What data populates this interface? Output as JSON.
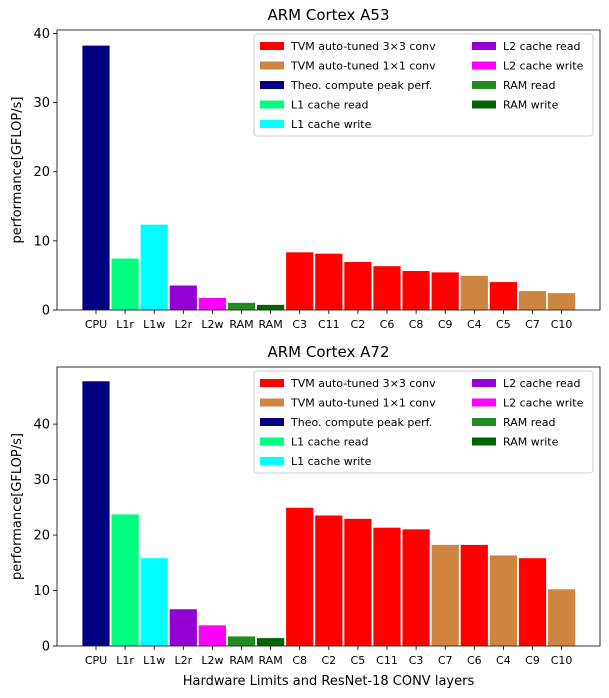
{
  "chart_data": [
    {
      "type": "bar",
      "title": "ARM Cortex A53",
      "xlabel": "",
      "ylabel": "performance[GFLOP/s]",
      "ylim": [
        0,
        40.5
      ],
      "yticks": [
        0,
        10,
        20,
        30,
        40
      ],
      "legend_position": "top-right",
      "categories": [
        "CPU",
        "L1r",
        "L1w",
        "L2r",
        "L2w",
        "RAM",
        "RAM",
        "C3",
        "C11",
        "C2",
        "C6",
        "C8",
        "C9",
        "C4",
        "C5",
        "C7",
        "C10"
      ],
      "values": [
        38.3,
        7.5,
        12.4,
        3.6,
        1.8,
        1.1,
        0.8,
        8.4,
        8.2,
        7.0,
        6.4,
        5.7,
        5.5,
        5.0,
        4.1,
        2.8,
        2.5
      ],
      "bar_types": [
        "peak",
        "l1r",
        "l1w",
        "l2r",
        "l2w",
        "ramr",
        "ramw",
        "c3x3",
        "c3x3",
        "c3x3",
        "c3x3",
        "c3x3",
        "c3x3",
        "c1x1",
        "c3x3",
        "c1x1",
        "c1x1"
      ]
    },
    {
      "type": "bar",
      "title": "ARM Cortex A72",
      "xlabel": "Hardware Limits and ResNet-18 CONV layers",
      "ylabel": "performance[GFLOP/s]",
      "ylim": [
        0,
        50.3
      ],
      "yticks": [
        0,
        10,
        20,
        30,
        40
      ],
      "legend_position": "top-right",
      "categories": [
        "CPU",
        "L1r",
        "L1w",
        "L2r",
        "L2w",
        "RAM",
        "RAM",
        "C8",
        "C2",
        "C5",
        "C11",
        "C3",
        "C7",
        "C6",
        "C4",
        "C9",
        "C10"
      ],
      "values": [
        47.8,
        23.8,
        15.9,
        6.7,
        3.8,
        1.8,
        1.5,
        25.0,
        23.6,
        23.0,
        21.4,
        21.1,
        18.3,
        18.3,
        16.4,
        15.9,
        10.3
      ],
      "bar_types": [
        "peak",
        "l1r",
        "l1w",
        "l2r",
        "l2w",
        "ramr",
        "ramw",
        "c3x3",
        "c3x3",
        "c3x3",
        "c3x3",
        "c3x3",
        "c1x1",
        "c3x3",
        "c1x1",
        "c3x3",
        "c1x1"
      ]
    }
  ],
  "legend": [
    {
      "key": "c3x3",
      "label": "TVM auto-tuned 3×3 conv",
      "color": "#ff0000"
    },
    {
      "key": "c1x1",
      "label": "TVM auto-tuned 1×1 conv",
      "color": "#cd853f"
    },
    {
      "key": "peak",
      "label": "Theo. compute peak perf.",
      "color": "#000080"
    },
    {
      "key": "l1r",
      "label": "L1 cache read",
      "color": "#00ff7f"
    },
    {
      "key": "l1w",
      "label": "L1 cache write",
      "color": "#00ffff"
    },
    {
      "key": "l2r",
      "label": "L2 cache read",
      "color": "#9400d3"
    },
    {
      "key": "l2w",
      "label": "L2 cache write",
      "color": "#ff00ff"
    },
    {
      "key": "ramr",
      "label": "RAM read",
      "color": "#228b22"
    },
    {
      "key": "ramw",
      "label": "RAM write",
      "color": "#006400"
    }
  ]
}
